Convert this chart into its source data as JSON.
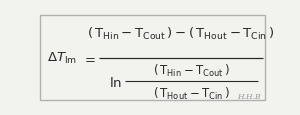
{
  "background_color": "#f2f2ee",
  "border_color": "#b0b0b0",
  "text_color": "#2a2a2a",
  "watermark": "H.H.B",
  "font_size_main": 9.5,
  "font_size_sub": 8.5,
  "font_size_watermark": 5.5,
  "fig_width": 3.0,
  "fig_height": 1.16,
  "dpi": 100
}
